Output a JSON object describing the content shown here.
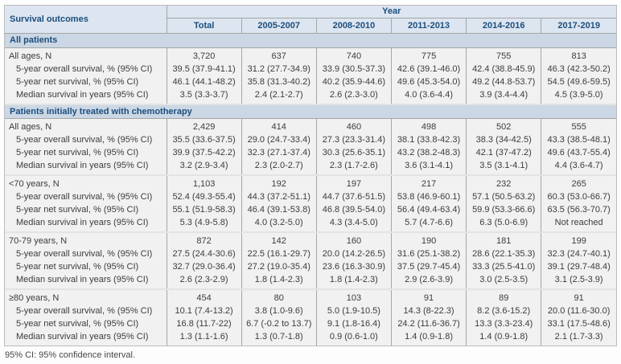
{
  "colors": {
    "header_bg": "#dce5f0",
    "band_bg": "#cbd7e4",
    "heading_text": "#1c4e7e",
    "body_text": "#3c3c3c",
    "cell_bg": "#f1f1f1",
    "grid_line": "#a6a6a6"
  },
  "table": {
    "corner_header": "Survival outcomes",
    "year_header": "Year",
    "columns": [
      "Total",
      "2005-2007",
      "2008-2010",
      "2011-2013",
      "2014-2016",
      "2017-2019"
    ],
    "metric_labels": [
      "5-year overall survival, % (95% CI)",
      "5-year net survival, % (95% CI)",
      "Median survival in years (95% CI)"
    ],
    "sections": [
      {
        "title": "All patients",
        "groups": [
          {
            "label": "All ages, N",
            "rows": [
              [
                "3,720",
                "637",
                "740",
                "775",
                "755",
                "813"
              ],
              [
                "39.5 (37.9-41.1)",
                "31.2 (27.7-34.9)",
                "33.9 (30.5-37.3)",
                "42.6 (39.1-46.0)",
                "42.4 (38.8-45.9)",
                "46.3 (42.3-50.2)"
              ],
              [
                "46.1 (44.1-48.2)",
                "35.8 (31.3-40.2)",
                "40.2 (35.9-44.6)",
                "49.6 (45.3-54.0)",
                "49.2 (44.8-53.7)",
                "54.5 (49.6-59.5)"
              ],
              [
                "3.5 (3.3-3.7)",
                "2.4 (2.1-2.7)",
                "2.6 (2.3-3.0)",
                "4.0 (3.6-4.4)",
                "3.9 (3.4-4.4)",
                "4.5 (3.9-5.0)"
              ]
            ]
          }
        ]
      },
      {
        "title": "Patients initially treated with chemotherapy",
        "groups": [
          {
            "label": "All ages, N",
            "rows": [
              [
                "2,429",
                "414",
                "460",
                "498",
                "502",
                "555"
              ],
              [
                "35.5 (33.6-37.5)",
                "29.0 (24.7-33.4)",
                "27.3 (23.3-31.4)",
                "38.1 (33.8-42.3)",
                "38.3 (34-42.5)",
                "43.3 (38.5-48.1)"
              ],
              [
                "39.9 (37.5-42.2)",
                "32.3 (27.1-37.4)",
                "30.3 (25.6-35.1)",
                "43.2 (38.2-48.3)",
                "42.1 (37-47.2)",
                "49.6 (43.7-55.4)"
              ],
              [
                "3.2 (2.9-3.4)",
                "2.3 (2.0-2.7)",
                "2.3 (1.7-2.6)",
                "3.6 (3.1-4.1)",
                "3.5 (3.1-4.1)",
                "4.4 (3.6-4.7)"
              ]
            ]
          },
          {
            "label": "<70 years, N",
            "rows": [
              [
                "1,103",
                "192",
                "197",
                "217",
                "232",
                "265"
              ],
              [
                "52.4 (49.3-55.4)",
                "44.3 (37.2-51.1)",
                "44.7 (37.6-51.5)",
                "53.8 (46.9-60.1)",
                "57.1 (50.5-63.2)",
                "60.3 (53.0-66.7)"
              ],
              [
                "55.1 (51.9-58.3)",
                "46.4 (39.1-53.8)",
                "46.8 (39.5-54.0)",
                "56.4 (49.4-63.4)",
                "59.9 (53.3-66.6)",
                "63.5 (56.3-70.7)"
              ],
              [
                "5.3 (4.9-5.8)",
                "4.0 (3.2-5.0)",
                "4.3 (3.4-5.0)",
                "5.7 (4.7-6.6)",
                "6.3 (5.0-6.9)",
                "Not reached"
              ]
            ]
          },
          {
            "label": "70-79 years, N",
            "rows": [
              [
                "872",
                "142",
                "160",
                "190",
                "181",
                "199"
              ],
              [
                "27.5 (24.4-30.6)",
                "22.5 (16.1-29.7)",
                "20.0 (14.2-26.5)",
                "31.6 (25.1-38.2)",
                "28.6 (22.1-35.3)",
                "32.3 (24.7-40.1)"
              ],
              [
                "32.7 (29.0-36.4)",
                "27.2 (19.0-35.4)",
                "23.6 (16.3-30.9)",
                "37.5 (29.7-45.4)",
                "33.3 (25.5-41.0)",
                "39.1 (29.7-48.4)"
              ],
              [
                "2.6 (2.3-2.9)",
                "1.8 (1.4-2.3)",
                "1.8 (1.4-2.3)",
                "2.9 (2.6-3.9)",
                "3.0 (2.5-3.5)",
                "3.1 (2.5-3.9)"
              ]
            ]
          },
          {
            "label": "≥80 years, N",
            "rows": [
              [
                "454",
                "80",
                "103",
                "91",
                "89",
                "91"
              ],
              [
                "10.1 (7.4-13.2)",
                "3.8 (1.0-9.6)",
                "5.0 (1.9-10.5)",
                "14.3 (8-22.3)",
                "8.2 (3.6-15.2)",
                "20.0 (11.6-30.0)"
              ],
              [
                "16.8 (11.7-22)",
                "6.7 (-0.2 to 13.7)",
                "9.1 (1.8-16.4)",
                "24.2 (11.6-36.7)",
                "13.3 (3.3-23.4)",
                "33.1 (17.5-48.6)"
              ],
              [
                "1.3 (1.1-1.6)",
                "1.3 (0.7-1.8)",
                "0.9 (0.6-1.0)",
                "1.4 (0.9-1.8)",
                "1.4 (0.9-1.8)",
                "2.1 (1.7-3.3)"
              ]
            ]
          }
        ]
      }
    ]
  },
  "footnote": "95% CI: 95% confidence interval."
}
